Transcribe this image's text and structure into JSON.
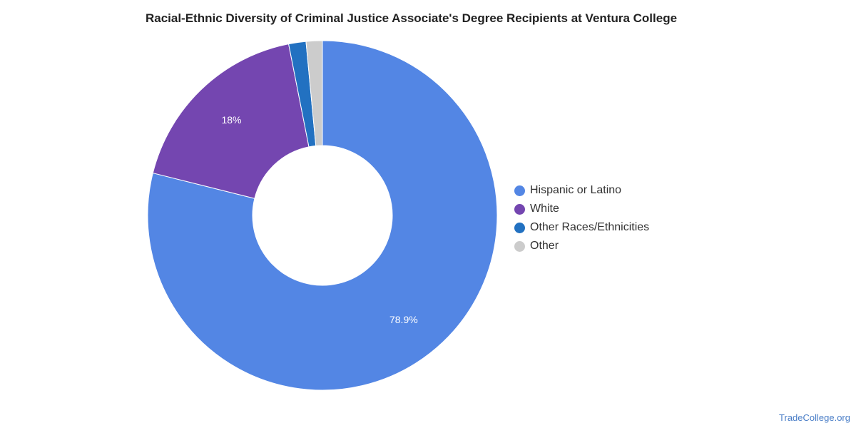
{
  "chart_data": {
    "type": "pie",
    "variant": "donut",
    "title": "Racial-Ethnic Diversity of Criminal Justice Associate's Degree Recipients at Ventura College",
    "categories": [
      "Hispanic or Latino",
      "White",
      "Other Races/Ethnicities",
      "Other"
    ],
    "values": [
      78.9,
      18,
      1.6,
      1.5
    ],
    "data_labels": [
      "78.9%",
      "18%",
      "",
      ""
    ],
    "colors": [
      "#5386e4",
      "#7446b0",
      "#2271c1",
      "#cccccc"
    ],
    "legend_position": "right"
  },
  "footer": {
    "source": "TradeCollege.org"
  }
}
